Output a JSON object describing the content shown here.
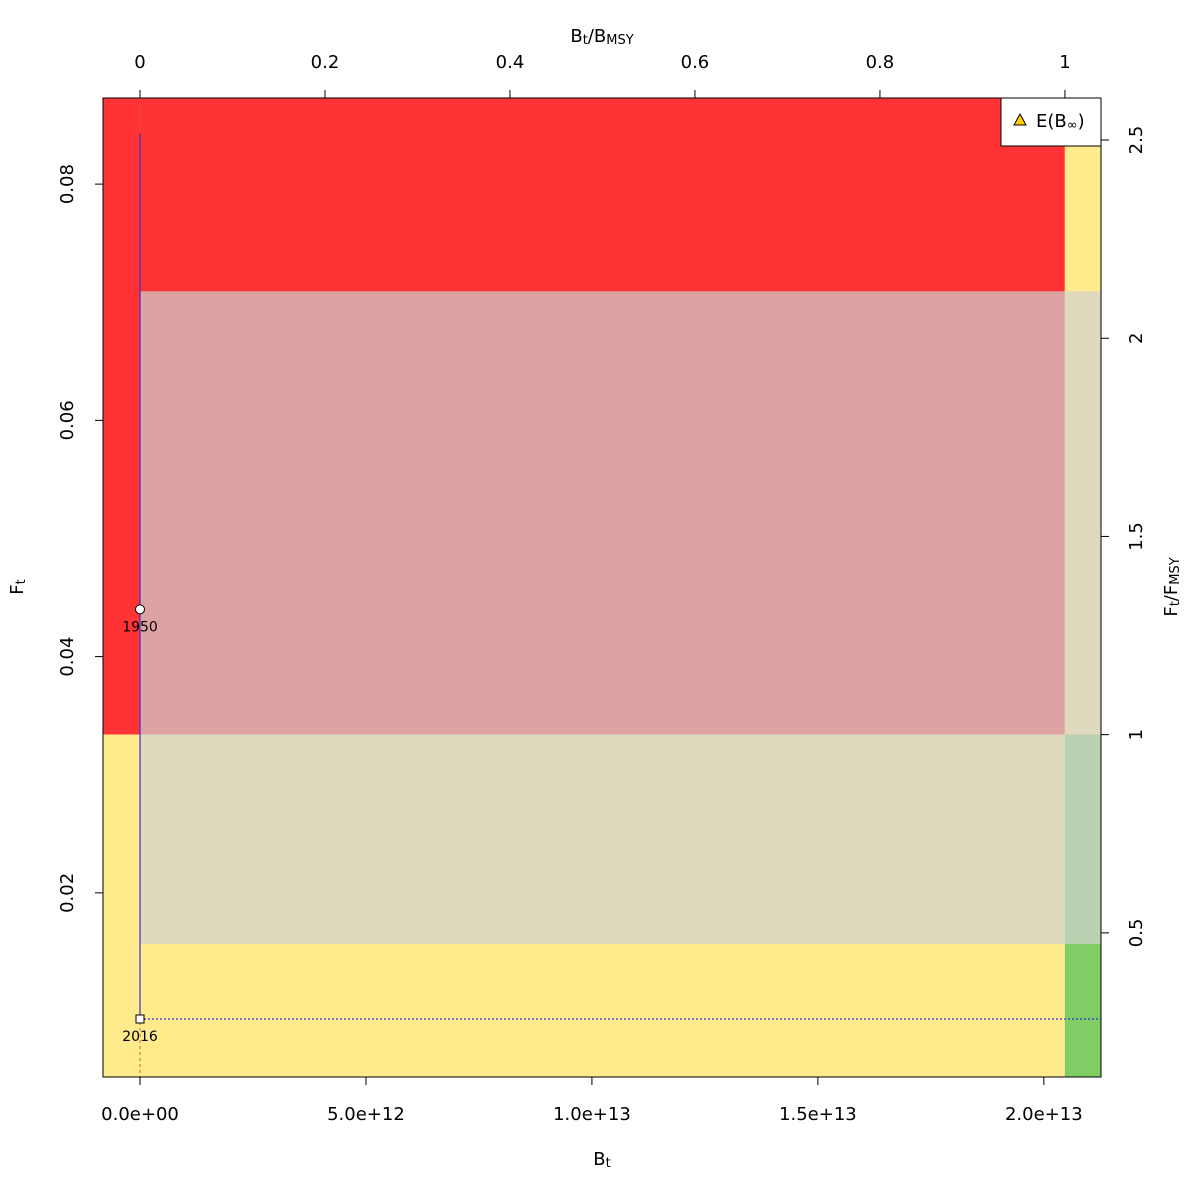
{
  "chart_data": {
    "type": "kobe",
    "xlabel": [
      "B",
      "t"
    ],
    "ylabel": [
      "F",
      "t"
    ],
    "x2label": [
      "B",
      "t",
      "/B",
      "MSY"
    ],
    "y2label": [
      "F",
      "t",
      "/F",
      "MSY"
    ],
    "xlim": [
      -819000000000.0,
      21265000000000.0
    ],
    "xticks": [
      {
        "value": 0,
        "label": "0.0e+00"
      },
      {
        "value": 5000000000000.0,
        "label": "5.0e+12"
      },
      {
        "value": 10000000000000.0,
        "label": "1.0e+13"
      },
      {
        "value": 15000000000000.0,
        "label": "1.5e+13"
      },
      {
        "value": 20000000000000.0,
        "label": "2.0e+13"
      }
    ],
    "ylim": [
      0.00441,
      0.08729
    ],
    "yticks": [
      0.02,
      0.04,
      0.06,
      0.08
    ],
    "x2lim": [
      -0.04,
      1.039
    ],
    "x2ticks": [
      0,
      0.2,
      0.4,
      0.6,
      0.8,
      1
    ],
    "y2lim": [
      0.1364,
      2.606
    ],
    "y2ticks": [
      0.5,
      1,
      1.5,
      2,
      2.5
    ],
    "bmsy": 20465000000000.0,
    "fmsy": 0.0334,
    "colors": {
      "red": "#ff3333",
      "yellow": "#ffea8c",
      "green": "#80cd66",
      "ci": "#d2d2d2",
      "trajectory": "#3333cc"
    },
    "ci_region": {
      "x": [
        0,
        22000000000000.0
      ],
      "y": [
        0.01568,
        0.07093
      ]
    },
    "trajectory": {
      "x": [
        0,
        0,
        0
      ],
      "y": [
        0.044,
        0.0843,
        0.00932
      ]
    },
    "points": [
      {
        "label": "1950",
        "x": 0,
        "y": 0.044
      },
      {
        "label": "2016",
        "x": 0,
        "y": 0.00932
      }
    ],
    "legend": [
      "E(B",
      "∞",
      ")"
    ]
  }
}
